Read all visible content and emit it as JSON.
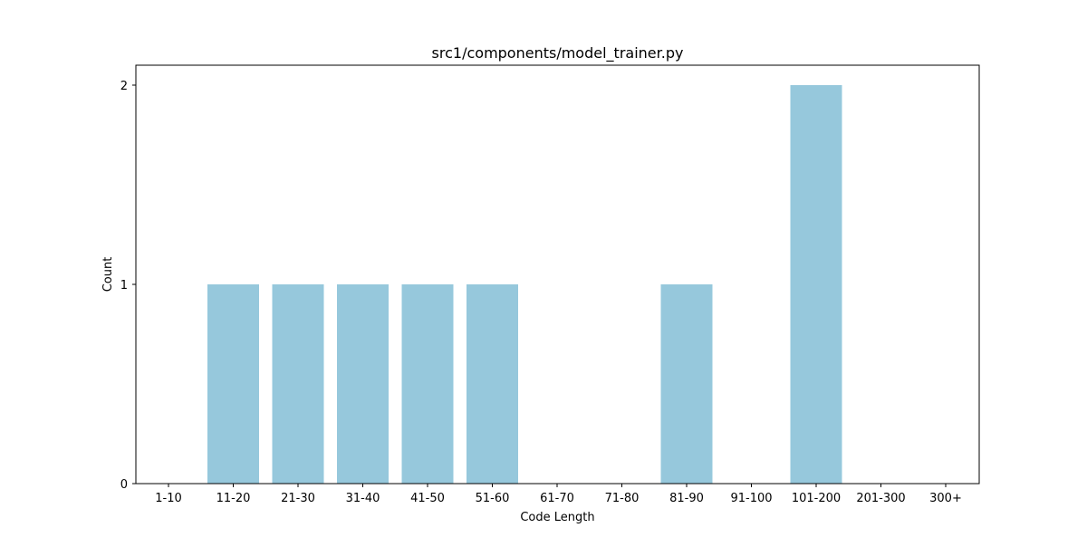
{
  "chart_data": {
    "type": "bar",
    "title": "src1/components/model_trainer.py",
    "xlabel": "Code Length",
    "ylabel": "Count",
    "categories": [
      "1-10",
      "11-20",
      "21-30",
      "31-40",
      "41-50",
      "51-60",
      "61-70",
      "71-80",
      "81-90",
      "91-100",
      "101-200",
      "201-300",
      "300+"
    ],
    "values": [
      0,
      1,
      1,
      1,
      1,
      1,
      0,
      0,
      1,
      0,
      2,
      0,
      0
    ],
    "yticks": [
      0,
      1,
      2
    ],
    "ylim": [
      0,
      2.1
    ],
    "grid": false,
    "legend": "none",
    "bar_color": "#96c8dc"
  }
}
